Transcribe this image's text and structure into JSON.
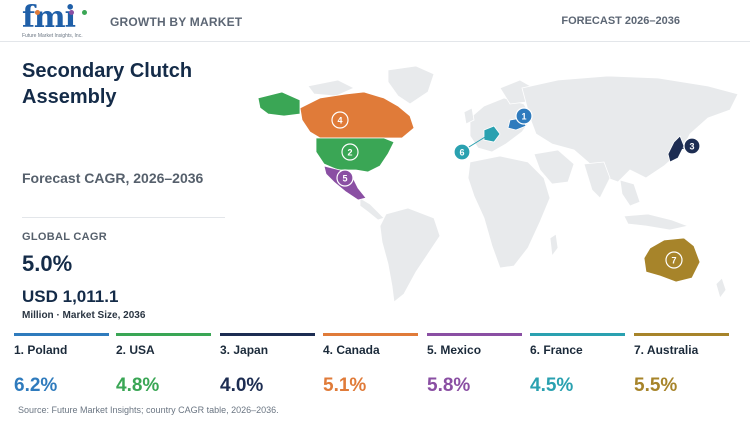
{
  "header": {
    "logo_text": "fmi",
    "logo_tagline": "Future Market Insights, Inc.",
    "left_label": "GROWTH BY MARKET",
    "right_label": "FORECAST 2026–2036"
  },
  "summary": {
    "title": "Secondary Clutch Assembly",
    "subtitle": "Forecast CAGR, 2026–2036",
    "global_cagr_label": "GLOBAL CAGR",
    "global_cagr_value": "5.0%",
    "market_size_value": "USD 1,011.1",
    "market_size_unit": "Million · Market Size, 2036"
  },
  "colors": {
    "poland": "#2f7bbd",
    "usa": "#3aa655",
    "japan": "#1d2d52",
    "canada": "#e07b39",
    "mexico": "#8a4fa3",
    "france": "#2aa1b0",
    "australia": "#a7842a",
    "land": "#e8eaec"
  },
  "countries": [
    {
      "rank": "1",
      "label": "1. Poland",
      "cagr": "6.2%",
      "color": "#2f7bbd"
    },
    {
      "rank": "2",
      "label": "2. USA",
      "cagr": "4.8%",
      "color": "#3aa655"
    },
    {
      "rank": "3",
      "label": "3. Japan",
      "cagr": "4.0%",
      "color": "#1d2d52"
    },
    {
      "rank": "4",
      "label": "4. Canada",
      "cagr": "5.1%",
      "color": "#e07b39"
    },
    {
      "rank": "5",
      "label": "5. Mexico",
      "cagr": "5.8%",
      "color": "#8a4fa3"
    },
    {
      "rank": "6",
      "label": "6. France",
      "cagr": "4.5%",
      "color": "#2aa1b0"
    },
    {
      "rank": "7",
      "label": "7. Australia",
      "cagr": "5.5%",
      "color": "#a7842a"
    }
  ],
  "source": "Source: Future Market Insights; country CAGR table, 2026–2036."
}
